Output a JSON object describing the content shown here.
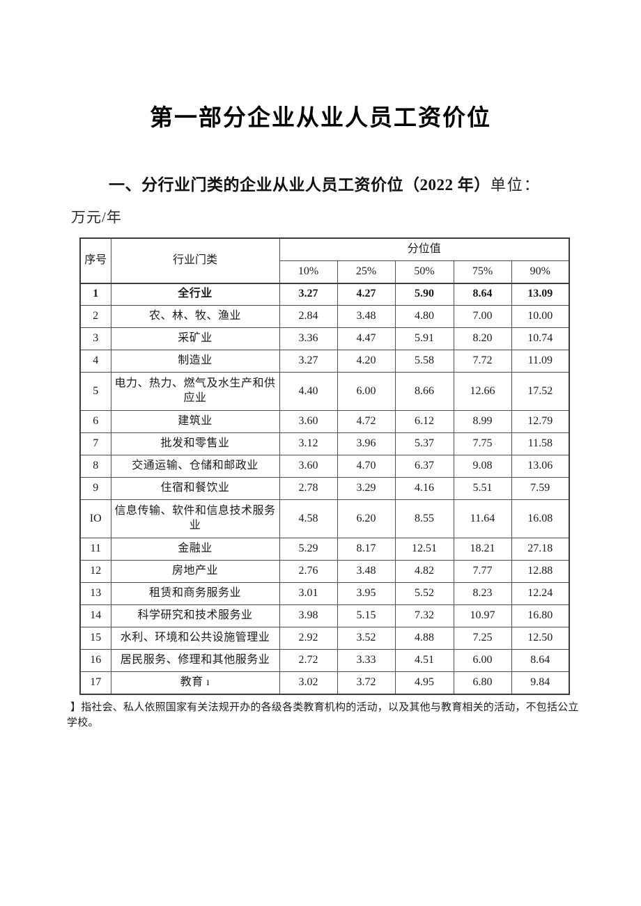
{
  "page": {
    "title": "第一部分企业从业人员工资价位",
    "section_heading": "一、分行业门类的企业从业人员工资价位（2022 年）",
    "unit_label": "单位：",
    "unit_value": "万元/年"
  },
  "table": {
    "headers": {
      "seq": "序号",
      "industry": "行业门类",
      "percentile_group": "分位值",
      "percentiles": [
        "10%",
        "25%",
        "50%",
        "75%",
        "90%"
      ]
    },
    "rows": [
      {
        "seq": "1",
        "industry": "全行业",
        "values": [
          "3.27",
          "4.27",
          "5.90",
          "8.64",
          "13.09"
        ],
        "bold": true
      },
      {
        "seq": "2",
        "industry": "农、林、牧、渔业",
        "values": [
          "2.84",
          "3.48",
          "4.80",
          "7.00",
          "10.00"
        ]
      },
      {
        "seq": "3",
        "industry": "采矿业",
        "values": [
          "3.36",
          "4.47",
          "5.91",
          "8.20",
          "10.74"
        ]
      },
      {
        "seq": "4",
        "industry": "制造业",
        "values": [
          "3.27",
          "4.20",
          "5.58",
          "7.72",
          "11.09"
        ]
      },
      {
        "seq": "5",
        "industry": "电力、热力、燃气及水生产和供应业",
        "values": [
          "4.40",
          "6.00",
          "8.66",
          "12.66",
          "17.52"
        ],
        "tall": true
      },
      {
        "seq": "6",
        "industry": "建筑业",
        "values": [
          "3.60",
          "4.72",
          "6.12",
          "8.99",
          "12.79"
        ]
      },
      {
        "seq": "7",
        "industry": "批发和零售业",
        "values": [
          "3.12",
          "3.96",
          "5.37",
          "7.75",
          "11.58"
        ]
      },
      {
        "seq": "8",
        "industry": "交通运输、仓储和邮政业",
        "values": [
          "3.60",
          "4.70",
          "6.37",
          "9.08",
          "13.06"
        ]
      },
      {
        "seq": "9",
        "industry": "住宿和餐饮业",
        "values": [
          "2.78",
          "3.29",
          "4.16",
          "5.51",
          "7.59"
        ]
      },
      {
        "seq": "IO",
        "industry": "信息传输、软件和信息技术服务业",
        "values": [
          "4.58",
          "6.20",
          "8.55",
          "11.64",
          "16.08"
        ],
        "tall": true,
        "top_align": true
      },
      {
        "seq": "11",
        "industry": "金融业",
        "values": [
          "5.29",
          "8.17",
          "12.51",
          "18.21",
          "27.18"
        ]
      },
      {
        "seq": "12",
        "industry": "房地产业",
        "values": [
          "2.76",
          "3.48",
          "4.82",
          "7.77",
          "12.88"
        ]
      },
      {
        "seq": "13",
        "industry": "租赁和商务服务业",
        "values": [
          "3.01",
          "3.95",
          "5.52",
          "8.23",
          "12.24"
        ]
      },
      {
        "seq": "14",
        "industry": "科学研究和技术服务业",
        "values": [
          "3.98",
          "5.15",
          "7.32",
          "10.97",
          "16.80"
        ]
      },
      {
        "seq": "15",
        "industry": "水利、环境和公共设施管理业",
        "values": [
          "2.92",
          "3.52",
          "4.88",
          "7.25",
          "12.50"
        ]
      },
      {
        "seq": "16",
        "industry": "居民服务、修理和其他服务业",
        "values": [
          "2.72",
          "3.33",
          "4.51",
          "6.00",
          "8.64"
        ]
      },
      {
        "seq": "17",
        "industry": "教育 ı",
        "values": [
          "3.02",
          "3.72",
          "4.95",
          "6.80",
          "9.84"
        ]
      }
    ]
  },
  "footnote": "】指社会、私人依照国家有关法规开办的各级各类教育机构的活动，以及其他与教育相关的活动，不包括公立学校。"
}
